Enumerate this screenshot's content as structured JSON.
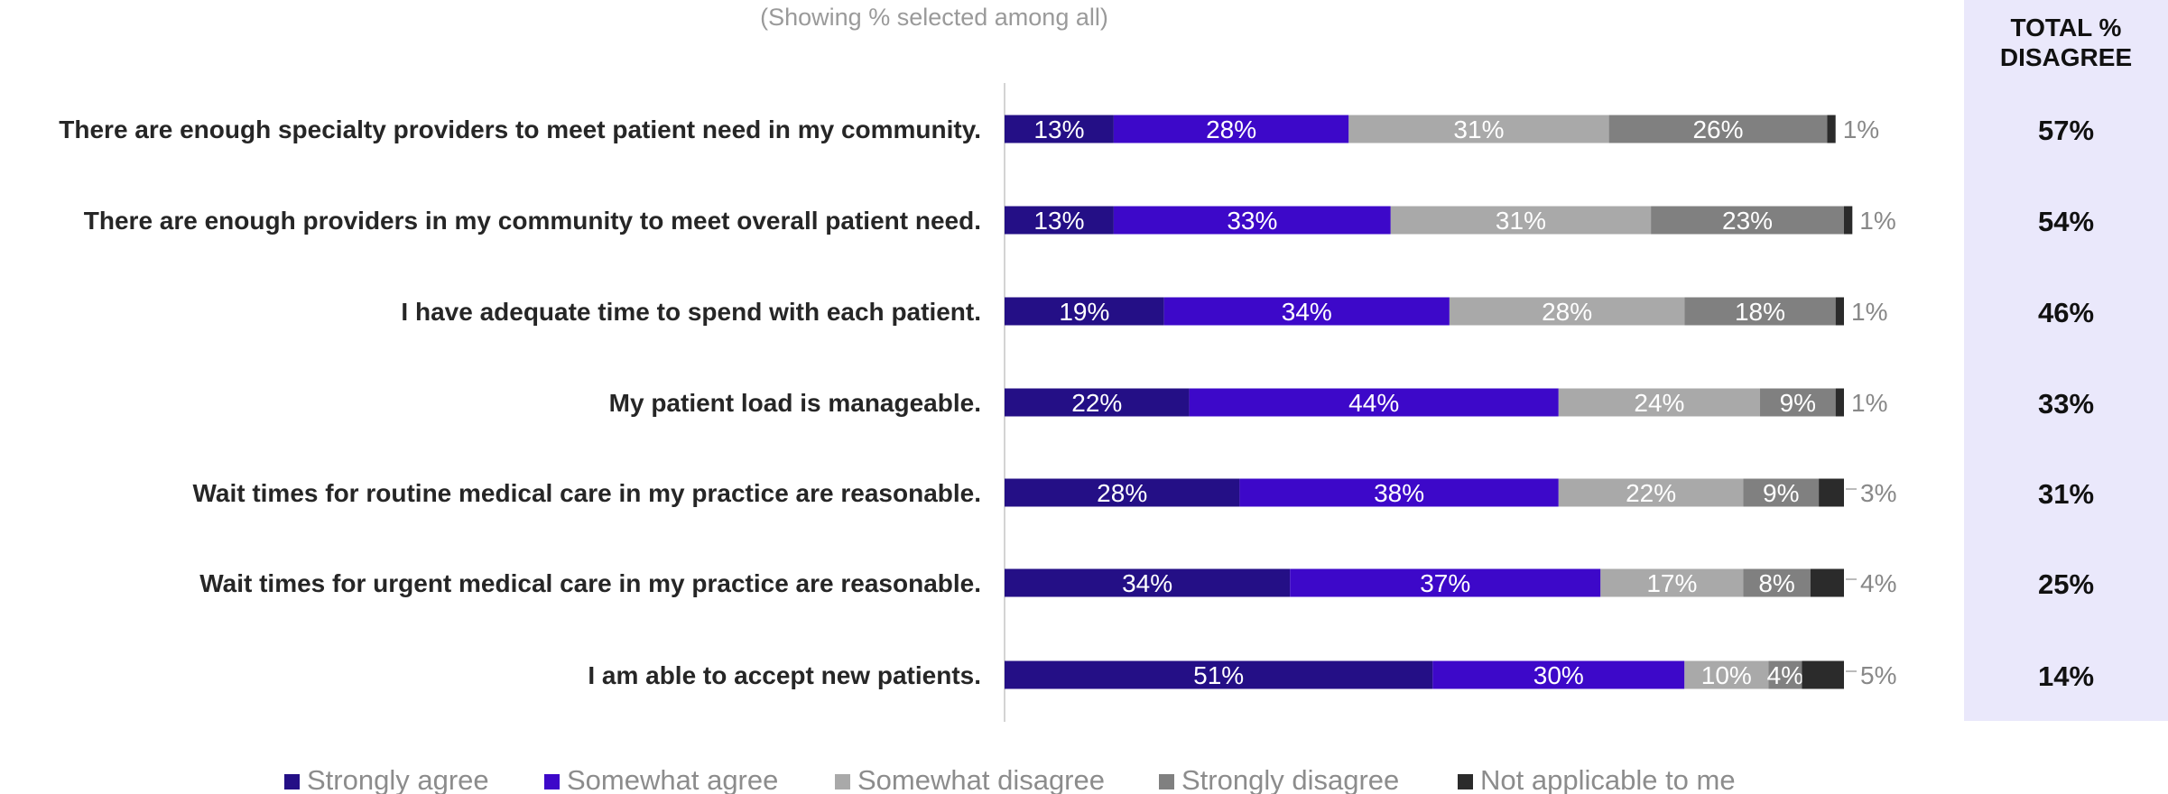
{
  "subtitle": "(Showing % selected among all)",
  "right_header": [
    "TOTAL %",
    "DISAGREE"
  ],
  "colors": {
    "strongly_agree": "#240f86",
    "somewhat_agree": "#3d08c9",
    "somewhat_disagree": "#a9a9a9",
    "strongly_disagree": "#808080",
    "not_applicable": "#2b2b2b",
    "panel_bg": "#eae8fb"
  },
  "chart_data": {
    "type": "bar",
    "orientation": "horizontal",
    "stacked": true,
    "xlim": [
      0,
      100
    ],
    "categories": [
      "There are enough specialty providers to meet patient need in my community.",
      "There are enough providers in my community to meet overall patient need.",
      "I have adequate time to spend with each patient.",
      "My patient load is manageable.",
      "Wait times for routine medical care in my practice are reasonable.",
      "Wait times for urgent medical care in my practice are reasonable.",
      "I am able to accept new patients."
    ],
    "series": [
      {
        "name": "Strongly agree",
        "values": [
          13,
          13,
          19,
          22,
          28,
          34,
          51
        ]
      },
      {
        "name": "Somewhat agree",
        "values": [
          28,
          33,
          34,
          44,
          38,
          37,
          30
        ]
      },
      {
        "name": "Somewhat disagree",
        "values": [
          31,
          31,
          28,
          24,
          22,
          17,
          10
        ]
      },
      {
        "name": "Strongly disagree",
        "values": [
          26,
          23,
          18,
          9,
          9,
          8,
          4
        ]
      },
      {
        "name": "Not applicable to me",
        "values": [
          1,
          1,
          1,
          1,
          3,
          4,
          5
        ]
      }
    ],
    "total_disagree": [
      "57%",
      "54%",
      "46%",
      "33%",
      "31%",
      "25%",
      "14%"
    ],
    "legend_position": "bottom"
  }
}
